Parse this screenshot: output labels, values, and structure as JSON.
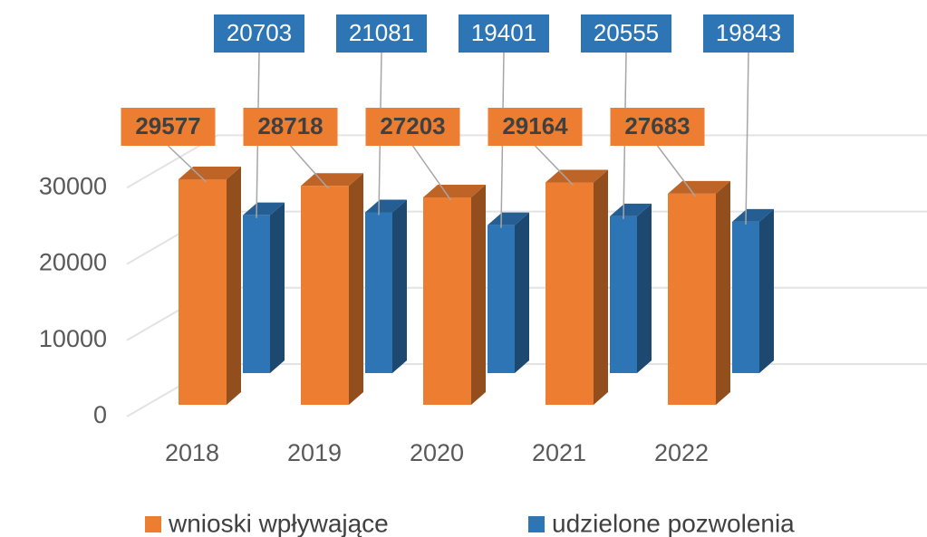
{
  "chart_data": {
    "type": "bar3d",
    "categories": [
      "2018",
      "2019",
      "2020",
      "2021",
      "2022"
    ],
    "series": [
      {
        "name": "wnioski wpływające",
        "color": "#ed7d31",
        "values": [
          29577,
          28718,
          27203,
          29164,
          27683
        ]
      },
      {
        "name": "udzielone pozwolenia",
        "color": "#2e75b6",
        "values": [
          20703,
          21081,
          19401,
          20555,
          19843
        ]
      }
    ],
    "ylim": [
      0,
      50000
    ],
    "yticks": [
      0,
      10000,
      20000,
      30000
    ],
    "grid": true,
    "legend": "bottom"
  }
}
